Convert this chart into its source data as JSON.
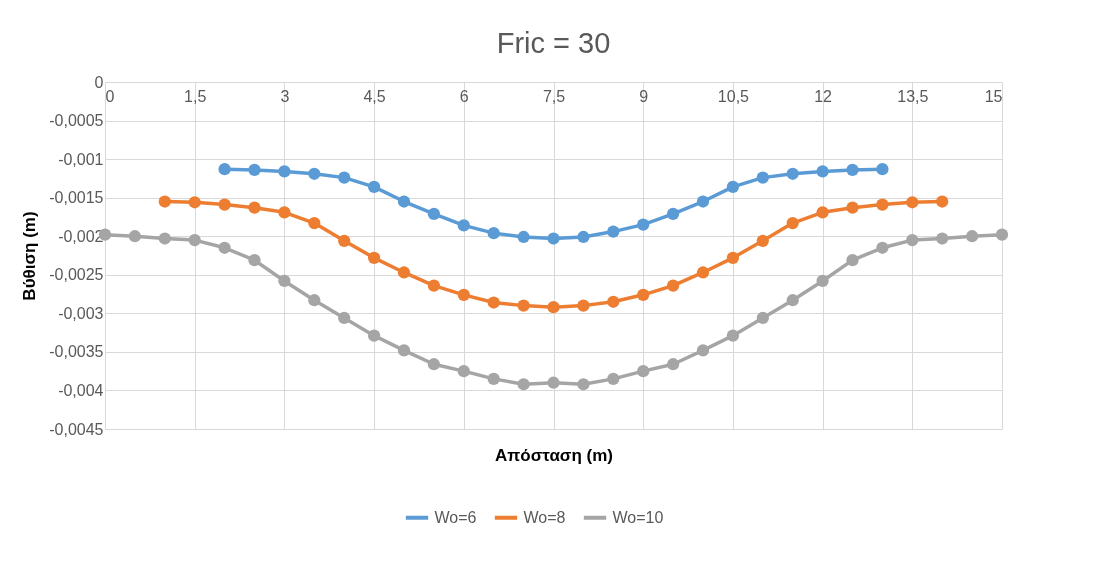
{
  "chart_data": {
    "type": "line",
    "title": "Fric = 30",
    "xlabel": "Απόσταση (m)",
    "ylabel": "Βύθιση (m)",
    "series": [
      {
        "name": "Wo=6",
        "color": "#5b9bd5",
        "x": [
          2,
          2.5,
          3,
          3.5,
          4,
          4.5,
          5,
          5.5,
          6,
          6.5,
          7,
          7.5,
          8,
          8.5,
          9,
          9.5,
          10,
          10.5,
          11,
          11.5,
          12,
          12.5,
          13
        ],
        "values": [
          -0.00113,
          -0.00114,
          -0.00116,
          -0.00119,
          -0.00124,
          -0.00136,
          -0.00155,
          -0.00171,
          -0.00186,
          -0.00196,
          -0.00201,
          -0.00203,
          -0.00201,
          -0.00194,
          -0.00185,
          -0.00171,
          -0.00155,
          -0.00136,
          -0.00124,
          -0.00119,
          -0.00116,
          -0.00114,
          -0.00113
        ]
      },
      {
        "name": "Wo=8",
        "color": "#ed7d31",
        "x": [
          1,
          1.5,
          2,
          2.5,
          3,
          3.5,
          4,
          4.5,
          5,
          5.5,
          6,
          6.5,
          7,
          7.5,
          8,
          8.5,
          9,
          9.5,
          10,
          10.5,
          11,
          11.5,
          12,
          12.5,
          13,
          13.5,
          14
        ],
        "values": [
          -0.00155,
          -0.00156,
          -0.00159,
          -0.00163,
          -0.00169,
          -0.00183,
          -0.00206,
          -0.00228,
          -0.00247,
          -0.00264,
          -0.00276,
          -0.00286,
          -0.0029,
          -0.00292,
          -0.0029,
          -0.00285,
          -0.00276,
          -0.00264,
          -0.00247,
          -0.00228,
          -0.00206,
          -0.00183,
          -0.00169,
          -0.00163,
          -0.00159,
          -0.00156,
          -0.00155
        ]
      },
      {
        "name": "Wo=10",
        "color": "#a5a5a5",
        "x": [
          0,
          0.5,
          1,
          1.5,
          2,
          2.5,
          3,
          3.5,
          4,
          4.5,
          5,
          5.5,
          6,
          6.5,
          7,
          7.5,
          8,
          8.5,
          9,
          9.5,
          10,
          10.5,
          11,
          11.5,
          12,
          12.5,
          13,
          13.5,
          14,
          14.5,
          15
        ],
        "values": [
          -0.00198,
          -0.002,
          -0.00203,
          -0.00205,
          -0.00215,
          -0.00231,
          -0.00258,
          -0.00283,
          -0.00306,
          -0.00329,
          -0.00348,
          -0.00366,
          -0.00375,
          -0.00385,
          -0.00392,
          -0.0039,
          -0.00392,
          -0.00385,
          -0.00375,
          -0.00366,
          -0.00348,
          -0.00329,
          -0.00306,
          -0.00283,
          -0.00258,
          -0.00231,
          -0.00215,
          -0.00205,
          -0.00203,
          -0.002,
          -0.00198
        ]
      }
    ],
    "xlim": [
      0,
      15
    ],
    "xticks": [
      0,
      {
        "value": 1.5,
        "label": "1,5"
      },
      3,
      {
        "value": 4.5,
        "label": "4,5"
      },
      6,
      {
        "value": 7.5,
        "label": "7,5"
      },
      9,
      {
        "value": 10.5,
        "label": "10,5"
      },
      12,
      {
        "value": 13.5,
        "label": "13,5"
      },
      15
    ],
    "ylim": [
      -0.0045,
      0
    ],
    "yticks": [
      {
        "value": -0.0045,
        "label": "-0,0045"
      },
      {
        "value": -0.004,
        "label": "-0,004"
      },
      {
        "value": -0.0035,
        "label": "-0,0035"
      },
      {
        "value": -0.003,
        "label": "-0,003"
      },
      {
        "value": -0.0025,
        "label": "-0,0025"
      },
      {
        "value": -0.002,
        "label": "-0,002"
      },
      {
        "value": -0.0015,
        "label": "-0,0015"
      },
      {
        "value": -0.001,
        "label": "-0,001"
      },
      {
        "value": -0.0005,
        "label": "-0,0005"
      },
      {
        "value": 0,
        "label": "0"
      }
    ],
    "grid": true,
    "legend": "bottom",
    "marker": "circle",
    "line_style": "solid"
  }
}
